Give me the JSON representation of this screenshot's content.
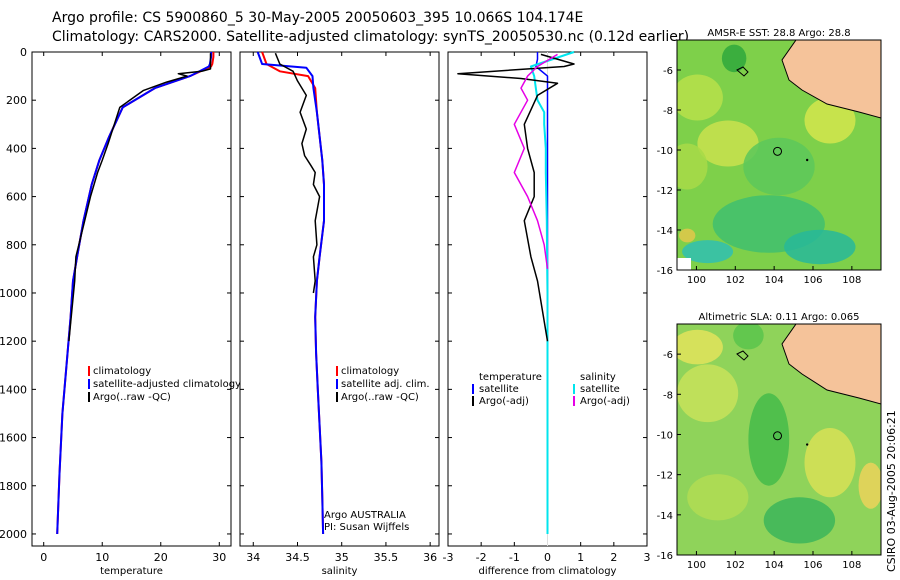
{
  "header": {
    "line1": "Argo profile: CS 5900860_5 30-May-2005 20050603_395 10.066S 104.174E",
    "line2": "Climatology: CARS2000. Satellite-adjusted climatology: synTS_20050530.nc (0.12d earlier)"
  },
  "footer_stamp": "CSIRO 03-Aug-2005 20:06:21",
  "colors": {
    "climatology": "#ff0000",
    "satellite": "#0000ff",
    "argo": "#000000",
    "sal_satellite": "#00e5ee",
    "sal_argo": "#e600e6"
  },
  "chart_data": [
    {
      "id": "temperature",
      "type": "line",
      "xlabel": "temperature",
      "xlim": [
        -2,
        32
      ],
      "ylim": [
        2050,
        0
      ],
      "xticks": [
        0,
        10,
        20,
        30
      ],
      "yticks": [
        0,
        200,
        400,
        600,
        800,
        1000,
        1200,
        1400,
        1600,
        1800,
        2000
      ],
      "legend": [
        "climatology",
        "satellite-adjusted climatology",
        "Argo(..raw -QC)"
      ],
      "series": [
        {
          "name": "climatology",
          "color": "#ff0000",
          "width": 2,
          "x": [
            29.0,
            29.0,
            28.8,
            28.6,
            25.0,
            19.0,
            13.5,
            11.2,
            9.5,
            8.2,
            6.8,
            5.7,
            5.0,
            4.6,
            3.9,
            3.2,
            2.7,
            2.3
          ],
          "y": [
            0,
            20,
            50,
            60,
            100,
            150,
            230,
            350,
            450,
            550,
            700,
            850,
            950,
            1100,
            1300,
            1500,
            1750,
            2000
          ]
        },
        {
          "name": "satellite",
          "color": "#0000ff",
          "width": 2,
          "x": [
            28.6,
            28.6,
            28.4,
            28.2,
            25.0,
            19.0,
            13.5,
            11.2,
            9.5,
            8.2,
            6.8,
            5.7,
            5.0,
            4.6,
            3.9,
            3.2,
            2.7,
            2.3
          ],
          "y": [
            0,
            20,
            50,
            60,
            100,
            150,
            230,
            350,
            450,
            550,
            700,
            850,
            950,
            1100,
            1300,
            1500,
            1750,
            2000
          ]
        },
        {
          "name": "Argo",
          "color": "#000000",
          "width": 1.5,
          "x": [
            28.5,
            28.5,
            27.0,
            23.0,
            24.5,
            21.0,
            17.0,
            13.0,
            11.0,
            10.0,
            9.2,
            8.0,
            7.0,
            5.5,
            5.3,
            4.7,
            4.3
          ],
          "y": [
            5,
            70,
            80,
            90,
            100,
            125,
            160,
            230,
            380,
            450,
            500,
            600,
            700,
            850,
            950,
            1100,
            1200
          ]
        }
      ]
    },
    {
      "id": "salinity",
      "type": "line",
      "xlabel": "salinity",
      "xlim": [
        33.85,
        36.1
      ],
      "ylim": [
        2050,
        0
      ],
      "xticks": [
        34,
        34.5,
        35,
        35.5,
        36
      ],
      "legend": [
        "climatology",
        "satellite adj. clim.",
        "Argo(..raw -QC)"
      ],
      "annotation": [
        "Argo AUSTRALIA",
        "PI: Susan Wijffels"
      ],
      "series": [
        {
          "name": "climatology",
          "color": "#ff0000",
          "width": 2,
          "x": [
            34.1,
            34.15,
            34.3,
            34.62,
            34.7,
            34.72,
            34.75,
            34.78,
            34.8,
            34.8,
            34.75,
            34.72,
            34.7,
            34.71,
            34.73,
            34.75,
            34.77,
            34.78,
            34.79
          ],
          "y": [
            0,
            50,
            80,
            100,
            150,
            250,
            350,
            450,
            550,
            700,
            850,
            950,
            1100,
            1250,
            1400,
            1550,
            1700,
            1850,
            2000
          ]
        },
        {
          "name": "satellite",
          "color": "#0000ff",
          "width": 2,
          "x": [
            34.05,
            34.1,
            34.6,
            34.67,
            34.68,
            34.72,
            34.75,
            34.78,
            34.8,
            34.8,
            34.75,
            34.72,
            34.7,
            34.71,
            34.73,
            34.75,
            34.77,
            34.78,
            34.79
          ],
          "y": [
            0,
            50,
            65,
            100,
            150,
            250,
            350,
            450,
            550,
            700,
            850,
            950,
            1100,
            1250,
            1400,
            1550,
            1700,
            1850,
            2000
          ]
        },
        {
          "name": "Argo",
          "color": "#000000",
          "width": 1.5,
          "x": [
            34.25,
            34.3,
            34.45,
            34.5,
            34.6,
            34.53,
            34.6,
            34.55,
            34.58,
            34.65,
            34.7,
            34.68,
            34.75,
            34.7,
            34.72,
            34.68,
            34.7,
            34.68
          ],
          "y": [
            5,
            50,
            80,
            120,
            180,
            250,
            320,
            380,
            430,
            470,
            500,
            550,
            600,
            700,
            800,
            850,
            950,
            1000
          ]
        }
      ]
    },
    {
      "id": "difference",
      "type": "line",
      "xlabel": "difference from climatology",
      "xlim": [
        -3,
        3
      ],
      "ylim": [
        2050,
        0
      ],
      "xticks": [
        -3,
        -2,
        -1,
        0,
        1,
        2,
        3
      ],
      "legend_left": [
        "temperature",
        "satellite",
        "Argo(-adj)"
      ],
      "legend_right": [
        "salinity",
        "satellite",
        "Argo(-adj)"
      ],
      "series": [
        {
          "name": "temperature satellite",
          "color": "#0000ff",
          "width": 1.5,
          "x": [
            -0.3,
            -0.3,
            -0.35,
            0,
            0,
            0,
            0,
            0
          ],
          "y": [
            0,
            30,
            60,
            100,
            400,
            1000,
            1500,
            2000
          ]
        },
        {
          "name": "salinity satellite",
          "color": "#00e5ee",
          "width": 2,
          "x": [
            0.8,
            -0.5,
            -0.4,
            -0.3,
            -0.1,
            -0.1,
            -0.05,
            -0.05,
            -0.02,
            -0.01,
            0,
            0,
            0
          ],
          "y": [
            0,
            60,
            100,
            200,
            250,
            300,
            400,
            500,
            700,
            900,
            1000,
            1200,
            2000
          ]
        },
        {
          "name": "temperature Argo",
          "color": "#000000",
          "width": 1.5,
          "x": [
            -0.2,
            0.8,
            0.5,
            -2.7,
            -0.8,
            0.3,
            -0.3,
            -0.7,
            -0.6,
            -0.4,
            -0.4,
            -0.7,
            -0.5,
            -0.3,
            0
          ],
          "y": [
            10,
            50,
            60,
            90,
            110,
            130,
            180,
            300,
            400,
            500,
            600,
            700,
            850,
            950,
            1200
          ]
        },
        {
          "name": "salinity Argo",
          "color": "#e600e6",
          "width": 1.5,
          "x": [
            0.3,
            -0.3,
            -0.6,
            -0.8,
            -0.6,
            -1.0,
            -0.7,
            -1.0,
            -0.6,
            -0.3,
            -0.1,
            0
          ],
          "y": [
            10,
            60,
            100,
            150,
            200,
            300,
            400,
            500,
            600,
            700,
            800,
            900
          ]
        }
      ]
    },
    {
      "id": "amsr-sst",
      "type": "heatmap",
      "title": "AMSR-E SST: 28.8 Argo: 28.8",
      "xlim": [
        99,
        109.5
      ],
      "ylim": [
        -16,
        -4.5
      ],
      "xticks": [
        100,
        102,
        104,
        106,
        108
      ],
      "yticks": [
        -6,
        -8,
        -10,
        -12,
        -14,
        -16
      ],
      "argo_position": [
        104.174,
        -10.066
      ]
    },
    {
      "id": "altimetric-sla",
      "type": "heatmap",
      "title": "Altimetric SLA: 0.11 Argo: 0.065",
      "xlim": [
        99,
        109.5
      ],
      "ylim": [
        -16,
        -4.5
      ],
      "xticks": [
        100,
        102,
        104,
        106,
        108
      ],
      "yticks": [
        -6,
        -8,
        -10,
        -12,
        -14,
        -16
      ],
      "argo_position": [
        104.174,
        -10.066
      ]
    }
  ]
}
